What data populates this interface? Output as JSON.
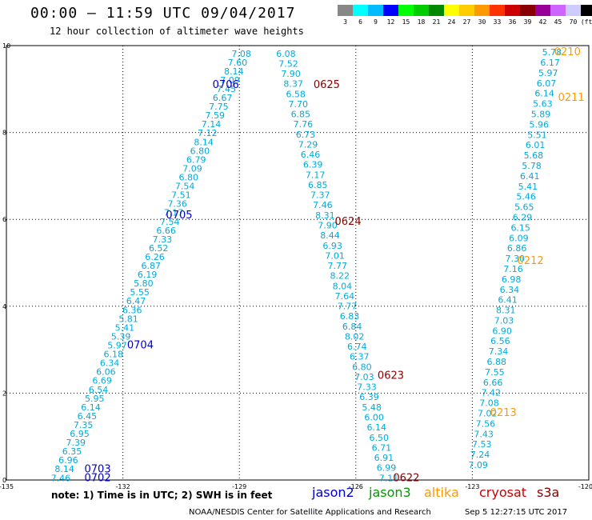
{
  "header": {
    "title": "00:00 – 11:59 UTC 09/04/2017",
    "subtitle": "12 hour collection of altimeter wave heights"
  },
  "colorbar": {
    "labels": [
      "3",
      "6",
      "9",
      "12",
      "15",
      "18",
      "21",
      "24",
      "27",
      "30",
      "33",
      "36",
      "39",
      "42",
      "45",
      "70",
      "(ft)"
    ],
    "colors": [
      "#888888",
      "#00ffff",
      "#00bbff",
      "#0000ff",
      "#00ff00",
      "#00cc00",
      "#008800",
      "#ffff00",
      "#ffcc00",
      "#ff9900",
      "#ff3300",
      "#cc0000",
      "#880000",
      "#990099",
      "#cc66ff",
      "#ccccff",
      "#000000"
    ]
  },
  "footer": {
    "note": "note: 1) Time is in UTC; 2) SWH is in feet",
    "credit": "NOAA/NESDIS Center for Satellite Applications and Research",
    "timestamp": "Sep  5 12:27:15 UTC 2017"
  },
  "legend": [
    {
      "name": "jason2",
      "color": "#0000cc"
    },
    {
      "name": "jason3",
      "color": "#009900"
    },
    {
      "name": "altika",
      "color": "#ff9900"
    },
    {
      "name": "cryosat",
      "color": "#cc0000"
    },
    {
      "name": "s3a",
      "color": "#880000"
    }
  ],
  "chart_data": {
    "type": "scatter",
    "xlim": [
      -135,
      -120
    ],
    "ylim": [
      0,
      10
    ],
    "xticks": [
      "-135",
      "-132",
      "-129",
      "-126",
      "-123",
      "-120"
    ],
    "yticks": [
      "0",
      "2",
      "4",
      "6",
      "8",
      "10"
    ],
    "grid": true,
    "value_color": "#00aadd",
    "tracks": [
      {
        "satellite": "jason2",
        "start": [
          -133.6,
          0.05
        ],
        "end": [
          -128.95,
          9.82
        ],
        "values": [
          "7.46",
          "8.14",
          "6.96",
          "6.35",
          "7.39",
          "6.95",
          "7.35",
          "6.45",
          "6.14",
          "5.95",
          "6.54",
          "6.69",
          "6.06",
          "6.34",
          "6.18",
          "5.97",
          "5.39",
          "5.41",
          "5.81",
          "6.36",
          "6.47",
          "5.55",
          "5.80",
          "6.19",
          "6.87",
          "6.26",
          "6.52",
          "7.33",
          "6.66",
          "7.54",
          "7.17",
          "7.36",
          "7.51",
          "7.54",
          "6.80",
          "7.09",
          "6.79",
          "6.80",
          "8.14",
          "7.12",
          "7.14",
          "7.59",
          "7.75",
          "6.67",
          "7.45",
          "7.09",
          "8.14",
          "7.60",
          "7.08"
        ],
        "time_labels": [
          {
            "text": "0702",
            "x": -132.65,
            "y": 0.05
          },
          {
            "text": "0703",
            "x": -132.65,
            "y": 0.25
          },
          {
            "text": "0704",
            "x": -131.55,
            "y": 3.1
          },
          {
            "text": "0705",
            "x": -130.55,
            "y": 6.1
          },
          {
            "text": "0706",
            "x": -129.35,
            "y": 9.1
          }
        ]
      },
      {
        "satellite": "s3a",
        "start": [
          -125.15,
          0.05
        ],
        "end": [
          -127.8,
          9.82
        ],
        "values": [
          "7.11",
          "6.99",
          "6.91",
          "6.71",
          "6.50",
          "6.14",
          "6.00",
          "5.48",
          "6.39",
          "7.33",
          "7.03",
          "6.80",
          "6.37",
          "6.74",
          "8.02",
          "6.84",
          "6.83",
          "7.77",
          "7.64",
          "8.04",
          "8.22",
          "7.77",
          "7.01",
          "6.93",
          "8.44",
          "7.90",
          "8.31",
          "7.46",
          "7.37",
          "6.85",
          "7.17",
          "6.39",
          "6.46",
          "7.29",
          "6.73",
          "7.76",
          "6.85",
          "7.70",
          "6.58",
          "8.37",
          "7.90",
          "7.52",
          "6.08"
        ],
        "time_labels": [
          {
            "text": "0622",
            "x": -124.7,
            "y": 0.05
          },
          {
            "text": "0623",
            "x": -125.1,
            "y": 2.4
          },
          {
            "text": "0624",
            "x": -126.2,
            "y": 5.95
          },
          {
            "text": "0625",
            "x": -126.75,
            "y": 9.1
          }
        ]
      },
      {
        "satellite": "altika",
        "start": [
          -122.85,
          0.35
        ],
        "end": [
          -120.95,
          9.85
        ],
        "values": [
          "7.09",
          "7.24",
          "7.53",
          "7.43",
          "7.56",
          "7.02",
          "7.08",
          "7.42",
          "6.66",
          "7.55",
          "6.88",
          "7.34",
          "6.56",
          "6.90",
          "7.03",
          "8.31",
          "6.41",
          "6.34",
          "6.98",
          "7.16",
          "7.30",
          "6.86",
          "6.09",
          "6.15",
          "6.29",
          "5.65",
          "5.46",
          "5.41",
          "6.41",
          "5.78",
          "5.68",
          "6.01",
          "5.51",
          "5.96",
          "5.89",
          "5.63",
          "6.14",
          "6.07",
          "5.97",
          "6.17",
          "5.78"
        ],
        "time_labels": [
          {
            "text": "0213",
            "x": -122.2,
            "y": 1.55
          },
          {
            "text": "0212",
            "x": -121.5,
            "y": 5.05
          },
          {
            "text": "0211",
            "x": -120.45,
            "y": 8.8
          },
          {
            "text": "0210",
            "x": -120.55,
            "y": 9.85
          }
        ]
      }
    ]
  }
}
